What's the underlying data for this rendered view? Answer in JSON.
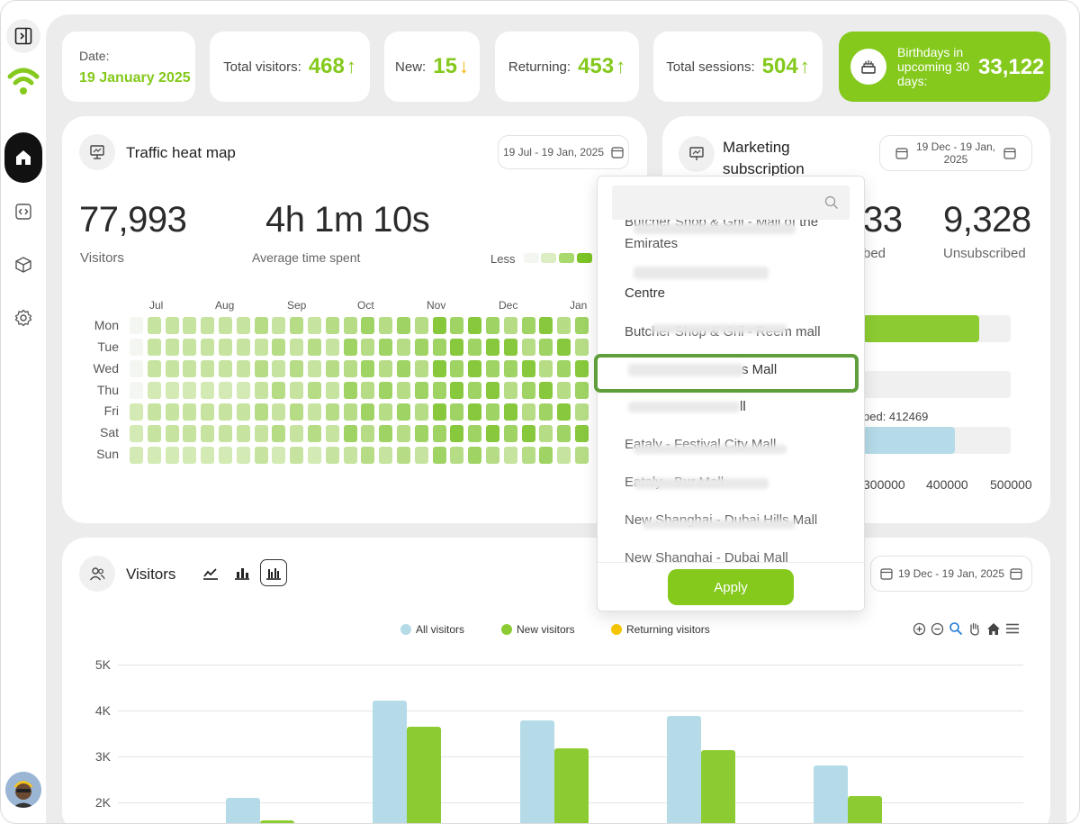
{
  "kpis": {
    "date_label": "Date:",
    "date_value": "19 January 2025",
    "total_visitors_label": "Total visitors:",
    "total_visitors_value": "468",
    "new_label": "New:",
    "new_value": "15",
    "returning_label": "Returning:",
    "returning_value": "453",
    "sessions_label": "Total sessions:",
    "sessions_value": "504",
    "birthdays_label": "Birthdays in upcoming 30 days:",
    "birthdays_value": "33,122"
  },
  "heatmap": {
    "title": "Traffic heat map",
    "date_range": "19 Jul - 19 Jan, 2025",
    "visitors_value": "77,993",
    "visitors_label": "Visitors",
    "avg_time_value": "4h 1m 10s",
    "avg_time_label": "Average time spent",
    "legend_less": "Less",
    "months": [
      "Jul",
      "Aug",
      "Sep",
      "Oct",
      "Nov",
      "Dec",
      "Jan"
    ],
    "days": [
      "Mon",
      "Tue",
      "Wed",
      "Thu",
      "Fri",
      "Sat",
      "Sun"
    ]
  },
  "marketing": {
    "title": "Marketing subscription",
    "date_range": "19 Dec - 19 Jan, 2025",
    "subscribed_partial": "33",
    "subscribed_label_partial": "bed",
    "unsubscribed_value": "9,328",
    "unsubscribed_label": "Unsubscribed",
    "bar_label_partial": "bed: 412469",
    "axis_ticks": [
      "300000",
      "400000",
      "500000"
    ]
  },
  "dropdown": {
    "search_placeholder": "",
    "items": [
      "Butcher Shop & Gril - Mall of the Emirates",
      "Centre",
      "Butcher Shop & Gril - Reem mall",
      "s Mall",
      "ll",
      "Eataly - Festival City Mall",
      "Eataly - Bur Mall",
      "New Shanghai - Dubai Hills Mall",
      "New Shanghai - Dubai Mall"
    ],
    "apply_label": "Apply"
  },
  "visitors": {
    "title": "Visitors",
    "date_range": "19 Dec - 19 Jan, 2025",
    "legend": [
      "All visitors",
      "New visitors",
      "Returning visitors"
    ]
  },
  "colors": {
    "accent": "#84c91c",
    "all_visitors": "#b5dbe8",
    "new_visitors": "#8ccc32",
    "returning_visitors": "#f5c500"
  },
  "chart_data": {
    "type": "bar",
    "ylim": [
      0,
      5000
    ],
    "yticks": [
      "5K",
      "4K",
      "3K",
      "2K"
    ],
    "series": [
      {
        "name": "All visitors",
        "values": [
          2100,
          4220,
          3790,
          3890,
          2800
        ]
      },
      {
        "name": "New visitors",
        "values": [
          1600,
          3640,
          3170,
          3140,
          2140
        ]
      },
      {
        "name": "Returning visitors",
        "values": [
          0,
          0,
          0,
          0,
          0
        ]
      }
    ]
  }
}
